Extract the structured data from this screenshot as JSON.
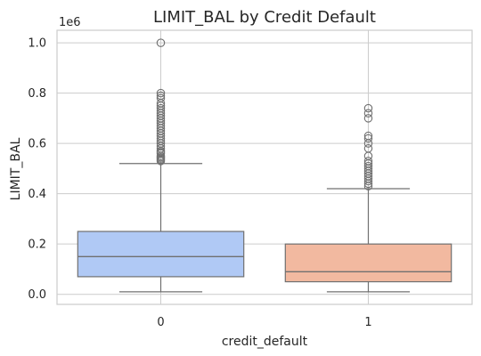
{
  "chart_data": {
    "type": "box",
    "title": "LIMIT_BAL by Credit Default",
    "xlabel": "credit_default",
    "ylabel": "LIMIT_BAL",
    "y_offset_label": "1e6",
    "ylim": [
      -0.04,
      1.05
    ],
    "yticks": [
      0.0,
      0.2,
      0.4,
      0.6,
      0.8,
      1.0
    ],
    "ytick_labels": [
      "0.0",
      "0.2",
      "0.4",
      "0.6",
      "0.8",
      "1.0"
    ],
    "grid": "horizontal",
    "categories": [
      "0",
      "1"
    ],
    "boxes": [
      {
        "category": "0",
        "color": "#b0c9f5",
        "whisker_low": 0.01,
        "q1": 0.07,
        "median": 0.15,
        "q3": 0.25,
        "whisker_high": 0.52,
        "outliers": [
          0.53,
          0.535,
          0.54,
          0.545,
          0.55,
          0.56,
          0.565,
          0.57,
          0.58,
          0.59,
          0.6,
          0.61,
          0.62,
          0.63,
          0.64,
          0.65,
          0.66,
          0.67,
          0.68,
          0.69,
          0.7,
          0.71,
          0.72,
          0.73,
          0.74,
          0.75,
          0.76,
          0.78,
          0.79,
          0.8,
          1.0
        ]
      },
      {
        "category": "1",
        "color": "#f2b9a0",
        "whisker_low": 0.01,
        "q1": 0.05,
        "median": 0.09,
        "q3": 0.2,
        "whisker_high": 0.42,
        "outliers": [
          0.43,
          0.44,
          0.45,
          0.46,
          0.47,
          0.48,
          0.49,
          0.5,
          0.51,
          0.52,
          0.53,
          0.55,
          0.58,
          0.6,
          0.62,
          0.63,
          0.7,
          0.72,
          0.74
        ]
      }
    ],
    "colors": {
      "line": "#707070",
      "grid": "#cccccc",
      "spine": "#cccccc",
      "outlier_edge": "#707070"
    }
  }
}
